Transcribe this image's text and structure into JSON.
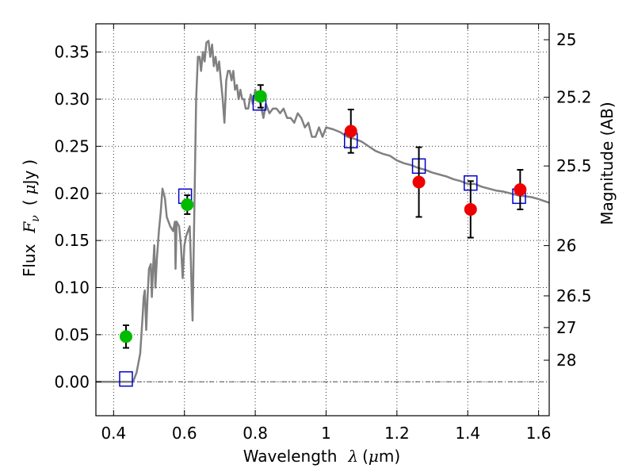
{
  "chart_data": {
    "type": "scatter",
    "xlabel": "Wavelength",
    "xlabel_symbol": "λ",
    "xlabel_unit_open": "(",
    "xlabel_unit_mu": "μ",
    "xlabel_unit_rest": "m)",
    "ylabel": "Flux",
    "ylabel_symbol": "F",
    "ylabel_subscript": "ν",
    "ylabel_unit_open": "(",
    "ylabel_unit_mu": "μ",
    "ylabel_unit_rest": "Jy",
    "ylabel_close": ")",
    "y2label": "Magnitude (AB)",
    "xlim": [
      0.35,
      1.63
    ],
    "ylim": [
      -0.036,
      0.38
    ],
    "x_ticks": [
      {
        "value": 0.4,
        "label": "0.4"
      },
      {
        "value": 0.6,
        "label": "0.6"
      },
      {
        "value": 0.8,
        "label": "0.8"
      },
      {
        "value": 1.0,
        "label": "1"
      },
      {
        "value": 1.2,
        "label": "1.2"
      },
      {
        "value": 1.4,
        "label": "1.4"
      },
      {
        "value": 1.6,
        "label": "1.6"
      }
    ],
    "y_ticks": [
      {
        "value": 0.0,
        "label": "0.00"
      },
      {
        "value": 0.05,
        "label": "0.05"
      },
      {
        "value": 0.1,
        "label": "0.10"
      },
      {
        "value": 0.15,
        "label": "0.15"
      },
      {
        "value": 0.2,
        "label": "0.20"
      },
      {
        "value": 0.25,
        "label": "0.25"
      },
      {
        "value": 0.3,
        "label": "0.30"
      },
      {
        "value": 0.35,
        "label": "0.35"
      }
    ],
    "mag_ticks": [
      {
        "value": 25,
        "label": "25"
      },
      {
        "value": 25.2,
        "label": "25.2"
      },
      {
        "value": 25.5,
        "label": "25.5"
      },
      {
        "value": 26,
        "label": "26"
      },
      {
        "value": 26.5,
        "label": "26.5"
      },
      {
        "value": 27,
        "label": "27"
      },
      {
        "value": 28,
        "label": "28"
      }
    ],
    "grid": true,
    "series": [
      {
        "name": "template-spectrum",
        "style": "line",
        "color": "#808080",
        "points": [
          [
            0.35,
            0.0
          ],
          [
            0.455,
            0.0
          ],
          [
            0.465,
            0.01
          ],
          [
            0.475,
            0.03
          ],
          [
            0.482,
            0.07
          ],
          [
            0.485,
            0.09
          ],
          [
            0.488,
            0.097
          ],
          [
            0.492,
            0.055
          ],
          [
            0.496,
            0.09
          ],
          [
            0.5,
            0.12
          ],
          [
            0.505,
            0.125
          ],
          [
            0.508,
            0.09
          ],
          [
            0.512,
            0.125
          ],
          [
            0.515,
            0.145
          ],
          [
            0.518,
            0.1
          ],
          [
            0.522,
            0.13
          ],
          [
            0.528,
            0.16
          ],
          [
            0.533,
            0.18
          ],
          [
            0.538,
            0.205
          ],
          [
            0.545,
            0.195
          ],
          [
            0.55,
            0.175
          ],
          [
            0.555,
            0.17
          ],
          [
            0.56,
            0.165
          ],
          [
            0.568,
            0.16
          ],
          [
            0.573,
            0.17
          ],
          [
            0.575,
            0.12
          ],
          [
            0.578,
            0.17
          ],
          [
            0.585,
            0.165
          ],
          [
            0.59,
            0.145
          ],
          [
            0.595,
            0.11
          ],
          [
            0.6,
            0.145
          ],
          [
            0.605,
            0.155
          ],
          [
            0.61,
            0.16
          ],
          [
            0.615,
            0.165
          ],
          [
            0.618,
            0.13
          ],
          [
            0.62,
            0.1
          ],
          [
            0.623,
            0.065
          ],
          [
            0.628,
            0.18
          ],
          [
            0.633,
            0.3
          ],
          [
            0.638,
            0.345
          ],
          [
            0.643,
            0.345
          ],
          [
            0.647,
            0.33
          ],
          [
            0.652,
            0.35
          ],
          [
            0.657,
            0.34
          ],
          [
            0.662,
            0.36
          ],
          [
            0.668,
            0.362
          ],
          [
            0.673,
            0.345
          ],
          [
            0.678,
            0.358
          ],
          [
            0.683,
            0.335
          ],
          [
            0.688,
            0.345
          ],
          [
            0.693,
            0.33
          ],
          [
            0.698,
            0.34
          ],
          [
            0.703,
            0.32
          ],
          [
            0.708,
            0.3
          ],
          [
            0.713,
            0.275
          ],
          [
            0.718,
            0.32
          ],
          [
            0.723,
            0.33
          ],
          [
            0.728,
            0.33
          ],
          [
            0.733,
            0.32
          ],
          [
            0.738,
            0.33
          ],
          [
            0.743,
            0.31
          ],
          [
            0.748,
            0.315
          ],
          [
            0.753,
            0.3
          ],
          [
            0.758,
            0.31
          ],
          [
            0.763,
            0.3
          ],
          [
            0.768,
            0.3
          ],
          [
            0.773,
            0.29
          ],
          [
            0.78,
            0.29
          ],
          [
            0.787,
            0.305
          ],
          [
            0.793,
            0.295
          ],
          [
            0.8,
            0.31
          ],
          [
            0.808,
            0.3
          ],
          [
            0.815,
            0.295
          ],
          [
            0.823,
            0.28
          ],
          [
            0.83,
            0.295
          ],
          [
            0.84,
            0.285
          ],
          [
            0.85,
            0.29
          ],
          [
            0.86,
            0.29
          ],
          [
            0.87,
            0.285
          ],
          [
            0.88,
            0.29
          ],
          [
            0.89,
            0.28
          ],
          [
            0.9,
            0.28
          ],
          [
            0.91,
            0.275
          ],
          [
            0.92,
            0.285
          ],
          [
            0.93,
            0.28
          ],
          [
            0.94,
            0.27
          ],
          [
            0.95,
            0.275
          ],
          [
            0.96,
            0.26
          ],
          [
            0.97,
            0.26
          ],
          [
            0.98,
            0.27
          ],
          [
            0.99,
            0.26
          ],
          [
            1.0,
            0.27
          ],
          [
            1.02,
            0.268
          ],
          [
            1.04,
            0.265
          ],
          [
            1.06,
            0.26
          ],
          [
            1.08,
            0.258
          ],
          [
            1.1,
            0.255
          ],
          [
            1.12,
            0.25
          ],
          [
            1.14,
            0.245
          ],
          [
            1.16,
            0.242
          ],
          [
            1.18,
            0.24
          ],
          [
            1.2,
            0.235
          ],
          [
            1.22,
            0.232
          ],
          [
            1.24,
            0.23
          ],
          [
            1.26,
            0.227
          ],
          [
            1.28,
            0.225
          ],
          [
            1.3,
            0.222
          ],
          [
            1.32,
            0.22
          ],
          [
            1.34,
            0.218
          ],
          [
            1.36,
            0.215
          ],
          [
            1.38,
            0.213
          ],
          [
            1.4,
            0.21
          ],
          [
            1.42,
            0.21
          ],
          [
            1.44,
            0.207
          ],
          [
            1.46,
            0.205
          ],
          [
            1.48,
            0.203
          ],
          [
            1.5,
            0.202
          ],
          [
            1.52,
            0.2
          ],
          [
            1.54,
            0.198
          ],
          [
            1.56,
            0.197
          ],
          [
            1.58,
            0.196
          ],
          [
            1.6,
            0.194
          ],
          [
            1.63,
            0.19
          ]
        ]
      },
      {
        "name": "model-photometry",
        "style": "open-square",
        "color": "#0000cc",
        "points": [
          [
            0.435,
            0.003
          ],
          [
            0.602,
            0.197
          ],
          [
            0.812,
            0.296
          ],
          [
            1.07,
            0.256
          ],
          [
            1.262,
            0.229
          ],
          [
            1.408,
            0.211
          ],
          [
            1.545,
            0.197
          ]
        ]
      },
      {
        "name": "optical-photometry",
        "style": "filled-circle",
        "color": "#00bb00",
        "points": [
          {
            "x": 0.435,
            "y": 0.048,
            "err": 0.012
          },
          {
            "x": 0.608,
            "y": 0.188,
            "err": 0.01
          },
          {
            "x": 0.815,
            "y": 0.303,
            "err": 0.012
          }
        ]
      },
      {
        "name": "nir-photometry",
        "style": "filled-circle",
        "color": "#ee0000",
        "points": [
          {
            "x": 1.07,
            "y": 0.266,
            "err": 0.023
          },
          {
            "x": 1.262,
            "y": 0.212,
            "err": 0.037
          },
          {
            "x": 1.408,
            "y": 0.183,
            "err": 0.03
          },
          {
            "x": 1.548,
            "y": 0.204,
            "err": 0.021
          }
        ]
      }
    ]
  }
}
